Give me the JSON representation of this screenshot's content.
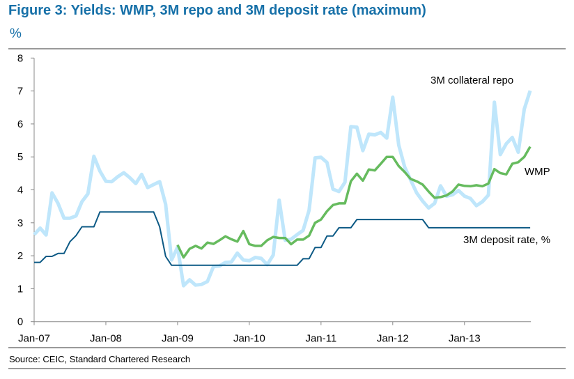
{
  "title": "Figure 3: Yields: WMP, 3M repo and 3M deposit rate (maximum)",
  "unit": "%",
  "source": "Source: CEIC, Standard Chartered Research",
  "chart_data": {
    "type": "line",
    "title": "Figure 3: Yields: WMP, 3M repo and 3M deposit rate (maximum)",
    "ylabel": "%",
    "xlabel": "",
    "ylim": [
      0,
      8
    ],
    "yticks": [
      "0",
      "1",
      "2",
      "3",
      "4",
      "5",
      "6",
      "7",
      "8"
    ],
    "xticks": [
      "Jan-07",
      "Jan-08",
      "Jan-09",
      "Jan-10",
      "Jan-11",
      "Jan-12",
      "Jan-13"
    ],
    "x_start": "Jan-07",
    "x_end": "Dec-13",
    "frequency": "monthly",
    "grid": false,
    "series": [
      {
        "name": "3M collateral repo",
        "color": "#bfe6fb",
        "values": [
          2.64,
          2.84,
          2.63,
          3.91,
          3.59,
          3.14,
          3.14,
          3.21,
          3.64,
          3.88,
          5.02,
          4.57,
          4.26,
          4.25,
          4.4,
          4.52,
          4.37,
          4.19,
          4.47,
          4.07,
          4.16,
          4.25,
          3.56,
          1.87,
          2.26,
          1.09,
          1.27,
          1.11,
          1.13,
          1.22,
          1.67,
          1.69,
          1.8,
          1.81,
          2.08,
          1.87,
          1.85,
          1.95,
          1.92,
          1.73,
          2.02,
          3.69,
          2.47,
          2.5,
          2.64,
          2.77,
          3.38,
          4.97,
          4.99,
          4.83,
          4.02,
          3.95,
          4.23,
          5.92,
          5.9,
          5.19,
          5.69,
          5.67,
          5.74,
          5.57,
          6.81,
          5.36,
          4.69,
          4.3,
          3.91,
          3.66,
          3.45,
          3.59,
          4.12,
          3.81,
          3.85,
          3.98,
          3.81,
          3.74,
          3.52,
          3.64,
          3.84,
          6.66,
          5.07,
          5.4,
          5.59,
          5.14,
          6.45,
          7.01
        ]
      },
      {
        "name": "WMP",
        "color": "#66bb5e",
        "values": [
          null,
          null,
          null,
          null,
          null,
          null,
          null,
          null,
          null,
          null,
          null,
          null,
          null,
          null,
          null,
          null,
          null,
          null,
          null,
          null,
          null,
          null,
          null,
          null,
          2.33,
          1.95,
          2.21,
          2.3,
          2.22,
          2.4,
          2.36,
          2.47,
          2.59,
          2.5,
          2.43,
          2.75,
          2.35,
          2.3,
          2.3,
          2.47,
          2.57,
          2.54,
          2.54,
          2.35,
          2.49,
          2.49,
          2.61,
          3.0,
          3.1,
          3.35,
          3.54,
          3.59,
          3.59,
          4.26,
          4.49,
          4.28,
          4.62,
          4.59,
          4.79,
          5.0,
          5.0,
          4.72,
          4.54,
          4.33,
          4.26,
          4.16,
          3.95,
          3.76,
          3.78,
          3.83,
          3.95,
          4.16,
          4.12,
          4.11,
          4.14,
          4.11,
          4.19,
          4.63,
          4.51,
          4.47,
          4.79,
          4.84,
          5.0,
          5.31
        ]
      },
      {
        "name": "3M deposit rate, %",
        "color": "#0d5a85",
        "values": [
          1.8,
          1.8,
          1.98,
          1.98,
          2.07,
          2.07,
          2.43,
          2.61,
          2.88,
          2.88,
          2.88,
          3.33,
          3.33,
          3.33,
          3.33,
          3.33,
          3.33,
          3.33,
          3.33,
          3.33,
          3.33,
          2.88,
          1.98,
          1.71,
          1.71,
          1.71,
          1.71,
          1.71,
          1.71,
          1.71,
          1.71,
          1.71,
          1.71,
          1.71,
          1.71,
          1.71,
          1.71,
          1.71,
          1.71,
          1.71,
          1.71,
          1.71,
          1.71,
          1.71,
          1.71,
          1.91,
          1.91,
          2.25,
          2.25,
          2.6,
          2.6,
          2.85,
          2.85,
          2.85,
          3.1,
          3.1,
          3.1,
          3.1,
          3.1,
          3.1,
          3.1,
          3.1,
          3.1,
          3.1,
          3.1,
          3.1,
          2.85,
          2.85,
          2.85,
          2.85,
          2.85,
          2.85,
          2.85,
          2.85,
          2.85,
          2.85,
          2.85,
          2.85,
          2.85,
          2.85,
          2.85,
          2.85,
          2.85,
          2.85
        ]
      }
    ],
    "annotations": [
      "3M collateral repo",
      "WMP",
      "3M deposit rate, %"
    ]
  }
}
